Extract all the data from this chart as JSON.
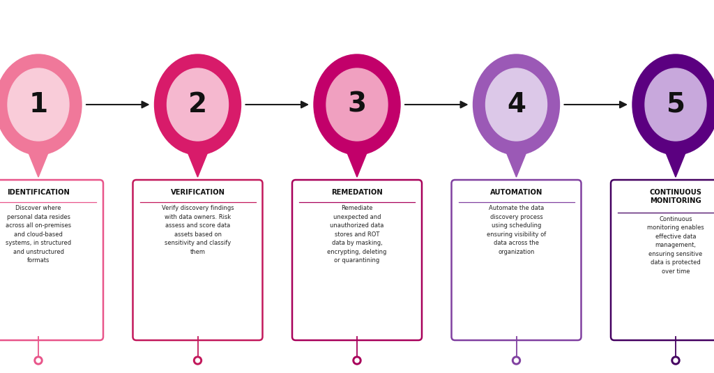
{
  "steps": [
    {
      "number": "1",
      "title": "IDENTIFICATION",
      "title_lines": 1,
      "text": "Discover where\npersonal data resides\nacross all on-premises\nand cloud-based\nsystems, in structured\nand unstructured\nformats",
      "outer_color": "#F0789A",
      "inner_color": "#F9CCD9",
      "dot_color": "#E8558A",
      "box_border_color": "#E8558A"
    },
    {
      "number": "2",
      "title": "VERIFICATION",
      "title_lines": 1,
      "text": "Verify discovery findings\nwith data owners. Risk\nassess and score data\nassets based on\nsensitivity and classify\nthem",
      "outer_color": "#D81B6A",
      "inner_color": "#F5B8CF",
      "dot_color": "#C2185B",
      "box_border_color": "#C2185B"
    },
    {
      "number": "3",
      "title": "REMEDATION",
      "title_lines": 1,
      "text": "Remediate\nunexpected and\nunauthorized data\nstores and ROT\ndata by masking,\nencrypting, deleting\nor quarantining",
      "outer_color": "#C2006A",
      "inner_color": "#F0A0C0",
      "dot_color": "#A8005A",
      "box_border_color": "#A8005A"
    },
    {
      "number": "4",
      "title": "AUTOMATION",
      "title_lines": 1,
      "text": "Automate the data\ndiscovery process\nusing scheduling\nensuring visibility of\ndata across the\norganization",
      "outer_color": "#9B59B6",
      "inner_color": "#DCC8E8",
      "dot_color": "#8040A0",
      "box_border_color": "#8040A0"
    },
    {
      "number": "5",
      "title": "CONTINUOUS\nMONITORING",
      "title_lines": 2,
      "text": "Continuous\nmonitoring enables\neffective data\nmanagement,\nensuring sensitive\ndata is protected\nover time",
      "outer_color": "#5B0080",
      "inner_color": "#C8A8DC",
      "dot_color": "#440060",
      "box_border_color": "#440060"
    }
  ],
  "background_color": "#FFFFFF",
  "arrow_color": "#1A1A1A",
  "fig_width": 10.24,
  "fig_height": 5.35,
  "dpi": 100
}
